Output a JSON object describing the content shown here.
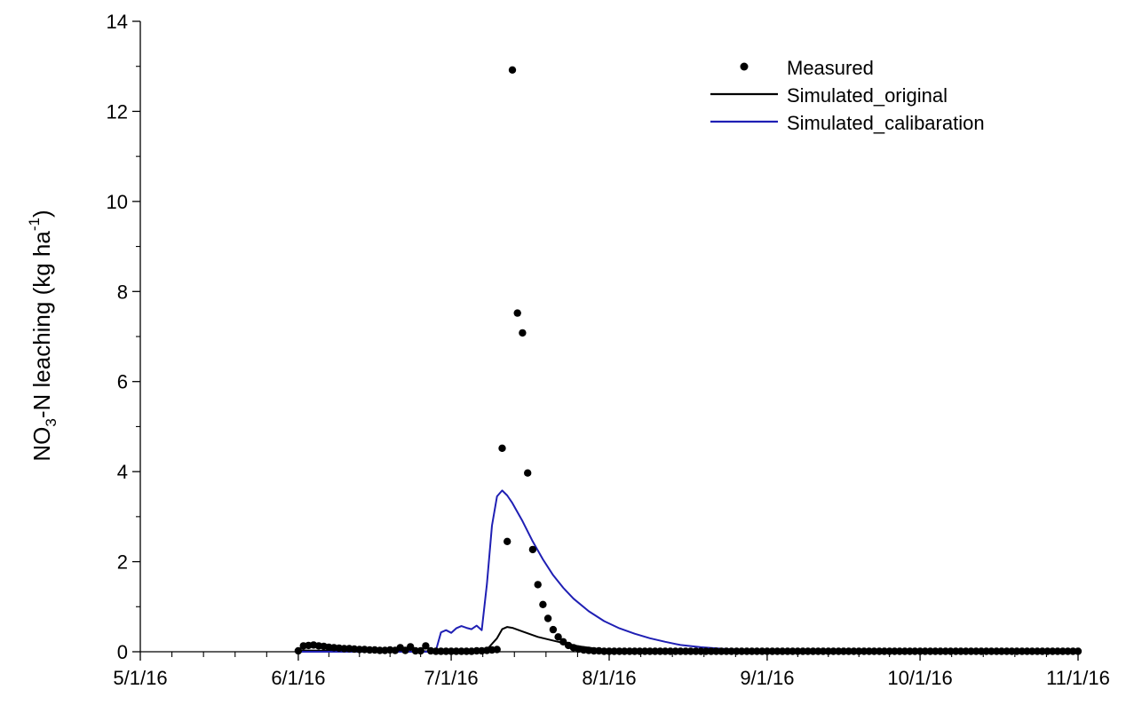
{
  "chart_data": {
    "type": "line",
    "title": "",
    "xlabel": "",
    "ylabel": {
      "prefix": "NO",
      "sub": "3",
      "middle": "-N leaching (kg ha",
      "sup": "-1",
      "suffix": ")"
    },
    "ylim": [
      0,
      14
    ],
    "yticks": [
      "0",
      "2",
      "4",
      "6",
      "8",
      "10",
      "12",
      "14"
    ],
    "xlim": [
      "2016-05-01",
      "2016-11-01"
    ],
    "xtick_labels": [
      "5/1/16",
      "6/1/16",
      "7/1/16",
      "8/1/16",
      "9/1/16",
      "10/1/16",
      "11/1/16"
    ],
    "x_unit": "days since 5/1/16",
    "grid": false,
    "legend_position": "top-right",
    "legend": [
      {
        "label": "Measured",
        "style": "marker",
        "color": "#000000"
      },
      {
        "label": "Simulated_original",
        "style": "line",
        "color": "#000000"
      },
      {
        "label": "Simulated_calibaration",
        "style": "line",
        "color": "#1f1fb4"
      }
    ],
    "series": [
      {
        "name": "Measured",
        "kind": "scatter",
        "color": "#000000",
        "points": [
          [
            31,
            0.02
          ],
          [
            32,
            0.13
          ],
          [
            33,
            0.14
          ],
          [
            34,
            0.15
          ],
          [
            35,
            0.13
          ],
          [
            36,
            0.12
          ],
          [
            37,
            0.1
          ],
          [
            38,
            0.09
          ],
          [
            39,
            0.08
          ],
          [
            40,
            0.07
          ],
          [
            41,
            0.07
          ],
          [
            42,
            0.06
          ],
          [
            43,
            0.05
          ],
          [
            44,
            0.05
          ],
          [
            45,
            0.04
          ],
          [
            46,
            0.04
          ],
          [
            47,
            0.03
          ],
          [
            48,
            0.03
          ],
          [
            49,
            0.04
          ],
          [
            50,
            0.03
          ],
          [
            51,
            0.09
          ],
          [
            52,
            0.03
          ],
          [
            53,
            0.11
          ],
          [
            54,
            0.02
          ],
          [
            55,
            0.02
          ],
          [
            56,
            0.13
          ],
          [
            57,
            0.02
          ],
          [
            58,
            0.01
          ],
          [
            59,
            0.01
          ],
          [
            60,
            0.01
          ],
          [
            61,
            0.01
          ],
          [
            62,
            0.01
          ],
          [
            63,
            0.01
          ],
          [
            64,
            0.01
          ],
          [
            65,
            0.01
          ],
          [
            66,
            0.02
          ],
          [
            67,
            0.02
          ],
          [
            68,
            0.03
          ],
          [
            69,
            0.04
          ],
          [
            70,
            0.05
          ],
          [
            71,
            4.52
          ],
          [
            72,
            2.45
          ],
          [
            73,
            12.92
          ],
          [
            74,
            7.52
          ],
          [
            75,
            7.08
          ],
          [
            76,
            3.97
          ],
          [
            77,
            2.27
          ],
          [
            78,
            1.49
          ],
          [
            79,
            1.05
          ],
          [
            80,
            0.74
          ],
          [
            81,
            0.49
          ],
          [
            82,
            0.33
          ],
          [
            83,
            0.22
          ],
          [
            84,
            0.14
          ],
          [
            85,
            0.09
          ],
          [
            86,
            0.06
          ],
          [
            87,
            0.04
          ],
          [
            88,
            0.03
          ],
          [
            89,
            0.02
          ],
          [
            90,
            0.02
          ],
          [
            91,
            0.01
          ],
          [
            92,
            0.01
          ],
          [
            93,
            0.01
          ],
          [
            94,
            0.01
          ],
          [
            95,
            0.01
          ],
          [
            96,
            0.01
          ],
          [
            97,
            0.01
          ],
          [
            98,
            0.01
          ],
          [
            99,
            0.01
          ],
          [
            100,
            0.01
          ],
          [
            101,
            0.01
          ],
          [
            102,
            0.01
          ],
          [
            103,
            0.01
          ],
          [
            104,
            0.01
          ],
          [
            105,
            0.01
          ],
          [
            106,
            0.01
          ],
          [
            107,
            0.01
          ],
          [
            108,
            0.01
          ],
          [
            109,
            0.01
          ],
          [
            110,
            0.01
          ],
          [
            111,
            0.01
          ],
          [
            112,
            0.01
          ],
          [
            113,
            0.01
          ],
          [
            114,
            0.01
          ],
          [
            115,
            0.01
          ],
          [
            116,
            0.01
          ],
          [
            117,
            0.01
          ],
          [
            118,
            0.01
          ],
          [
            119,
            0.01
          ],
          [
            120,
            0.01
          ],
          [
            121,
            0.01
          ],
          [
            122,
            0.01
          ],
          [
            123,
            0.01
          ],
          [
            124,
            0.01
          ],
          [
            125,
            0.01
          ],
          [
            126,
            0.01
          ],
          [
            127,
            0.01
          ],
          [
            128,
            0.01
          ],
          [
            129,
            0.01
          ],
          [
            130,
            0.01
          ],
          [
            131,
            0.01
          ],
          [
            132,
            0.01
          ],
          [
            133,
            0.01
          ],
          [
            134,
            0.01
          ],
          [
            135,
            0.01
          ],
          [
            136,
            0.01
          ],
          [
            137,
            0.01
          ],
          [
            138,
            0.01
          ],
          [
            139,
            0.01
          ],
          [
            140,
            0.01
          ],
          [
            141,
            0.01
          ],
          [
            142,
            0.01
          ],
          [
            143,
            0.01
          ],
          [
            144,
            0.01
          ],
          [
            145,
            0.01
          ],
          [
            146,
            0.01
          ],
          [
            147,
            0.01
          ],
          [
            148,
            0.01
          ],
          [
            149,
            0.01
          ],
          [
            150,
            0.01
          ],
          [
            151,
            0.01
          ],
          [
            152,
            0.01
          ],
          [
            153,
            0.01
          ],
          [
            154,
            0.01
          ],
          [
            155,
            0.01
          ],
          [
            156,
            0.01
          ],
          [
            157,
            0.01
          ],
          [
            158,
            0.01
          ],
          [
            159,
            0.01
          ],
          [
            160,
            0.01
          ],
          [
            161,
            0.01
          ],
          [
            162,
            0.01
          ],
          [
            163,
            0.01
          ],
          [
            164,
            0.01
          ],
          [
            165,
            0.01
          ],
          [
            166,
            0.01
          ],
          [
            167,
            0.01
          ],
          [
            168,
            0.01
          ],
          [
            169,
            0.01
          ],
          [
            170,
            0.01
          ],
          [
            171,
            0.01
          ],
          [
            172,
            0.01
          ],
          [
            173,
            0.01
          ],
          [
            174,
            0.01
          ],
          [
            175,
            0.01
          ],
          [
            176,
            0.01
          ],
          [
            177,
            0.01
          ],
          [
            178,
            0.01
          ],
          [
            179,
            0.01
          ],
          [
            180,
            0.01
          ],
          [
            181,
            0.01
          ],
          [
            182,
            0.01
          ],
          [
            183,
            0.01
          ],
          [
            184,
            0.01
          ]
        ]
      },
      {
        "name": "Simulated_original",
        "kind": "line",
        "color": "#000000",
        "points": [
          [
            31,
            0.03
          ],
          [
            40,
            0.02
          ],
          [
            56,
            0.01
          ],
          [
            64,
            0.0
          ],
          [
            68,
            0.05
          ],
          [
            70,
            0.3
          ],
          [
            71,
            0.5
          ],
          [
            72,
            0.55
          ],
          [
            73,
            0.53
          ],
          [
            75,
            0.45
          ],
          [
            78,
            0.33
          ],
          [
            82,
            0.22
          ],
          [
            86,
            0.12
          ],
          [
            90,
            0.06
          ],
          [
            95,
            0.03
          ],
          [
            100,
            0.02
          ],
          [
            110,
            0.01
          ],
          [
            184,
            0.0
          ]
        ]
      },
      {
        "name": "Simulated_calibaration",
        "kind": "line",
        "color": "#1f1fb4",
        "points": [
          [
            31,
            0.0
          ],
          [
            40,
            0.0
          ],
          [
            55,
            0.0
          ],
          [
            57,
            0.0
          ],
          [
            58,
            0.03
          ],
          [
            59,
            0.43
          ],
          [
            60,
            0.48
          ],
          [
            61,
            0.42
          ],
          [
            62,
            0.52
          ],
          [
            63,
            0.57
          ],
          [
            64,
            0.53
          ],
          [
            65,
            0.5
          ],
          [
            66,
            0.58
          ],
          [
            67,
            0.48
          ],
          [
            68,
            1.5
          ],
          [
            69,
            2.8
          ],
          [
            70,
            3.45
          ],
          [
            71,
            3.58
          ],
          [
            72,
            3.47
          ],
          [
            73,
            3.3
          ],
          [
            75,
            2.9
          ],
          [
            77,
            2.45
          ],
          [
            79,
            2.05
          ],
          [
            81,
            1.7
          ],
          [
            83,
            1.42
          ],
          [
            85,
            1.18
          ],
          [
            88,
            0.9
          ],
          [
            91,
            0.68
          ],
          [
            94,
            0.52
          ],
          [
            97,
            0.4
          ],
          [
            100,
            0.3
          ],
          [
            103,
            0.22
          ],
          [
            106,
            0.15
          ],
          [
            110,
            0.1
          ],
          [
            115,
            0.06
          ],
          [
            120,
            0.04
          ],
          [
            130,
            0.02
          ],
          [
            150,
            0.01
          ],
          [
            184,
            0.0
          ]
        ]
      }
    ]
  }
}
